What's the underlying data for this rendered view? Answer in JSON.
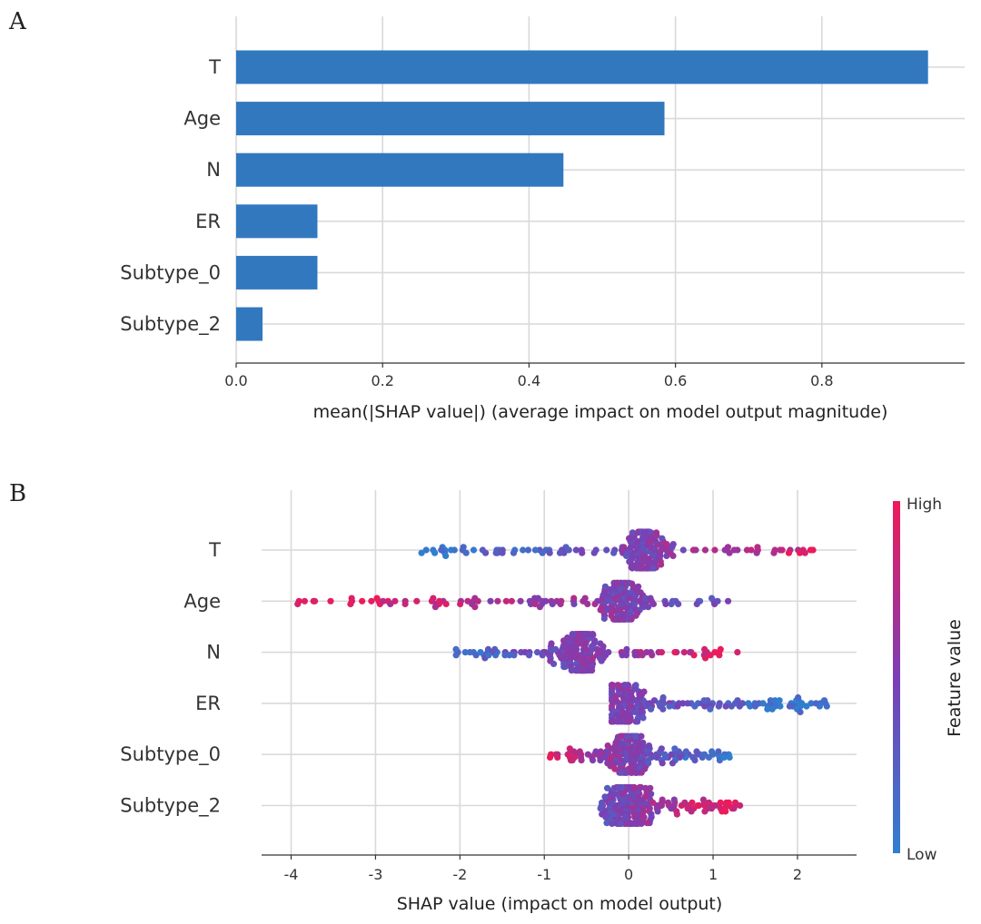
{
  "chart_data": [
    {
      "panel": "A",
      "type": "bar",
      "orientation": "horizontal",
      "categories": [
        "T",
        "Age",
        "N",
        "ER",
        "Subtype_0",
        "Subtype_2"
      ],
      "values": [
        0.945,
        0.585,
        0.447,
        0.111,
        0.111,
        0.036
      ],
      "xlabel": "mean(|SHAP value|) (average impact on model output magnitude)",
      "xlim": [
        0,
        0.995
      ],
      "xticks": [
        0.0,
        0.2,
        0.4,
        0.6,
        0.8
      ],
      "xtick_labels": [
        "0.0",
        "0.2",
        "0.4",
        "0.6",
        "0.8"
      ],
      "bar_color": "#3178bf",
      "grid": true
    },
    {
      "panel": "B",
      "type": "scatter",
      "subtype": "beeswarm",
      "features": [
        {
          "name": "T",
          "min": -2.55,
          "max": 2.2,
          "low_side": "negative",
          "corr": 1,
          "center": 0.2
        },
        {
          "name": "Age",
          "min": -4.05,
          "max": 1.3,
          "low_side": "positive",
          "corr": -1,
          "center": -0.1
        },
        {
          "name": "N",
          "min": -2.05,
          "max": 1.35,
          "low_side": "negative",
          "corr": 1,
          "center": -0.6
        },
        {
          "name": "ER",
          "min": -0.2,
          "max": 2.35,
          "low_side": "positive",
          "corr": -1,
          "center": -0.1
        },
        {
          "name": "Subtype_0",
          "min": -0.95,
          "max": 1.2,
          "low_side": "mixed",
          "corr": -1,
          "center": 0.0
        },
        {
          "name": "Subtype_2",
          "min": -0.35,
          "max": 1.35,
          "low_side": "negative",
          "corr": 1,
          "center": 0.0
        }
      ],
      "xlabel": "SHAP value (impact on model output)",
      "xlim": [
        -4.35,
        2.7
      ],
      "xticks": [
        -4,
        -3,
        -2,
        -1,
        0,
        1,
        2
      ],
      "xtick_labels": [
        "-4",
        "-3",
        "-2",
        "-1",
        "0",
        "1",
        "2"
      ],
      "colorbar": {
        "title": "Feature value",
        "high_label": "High",
        "low_label": "Low",
        "high_color": "#ff0052",
        "low_color": "#008bfb"
      },
      "grid": true
    }
  ],
  "panel_labels": {
    "a": "A",
    "b": "B"
  }
}
